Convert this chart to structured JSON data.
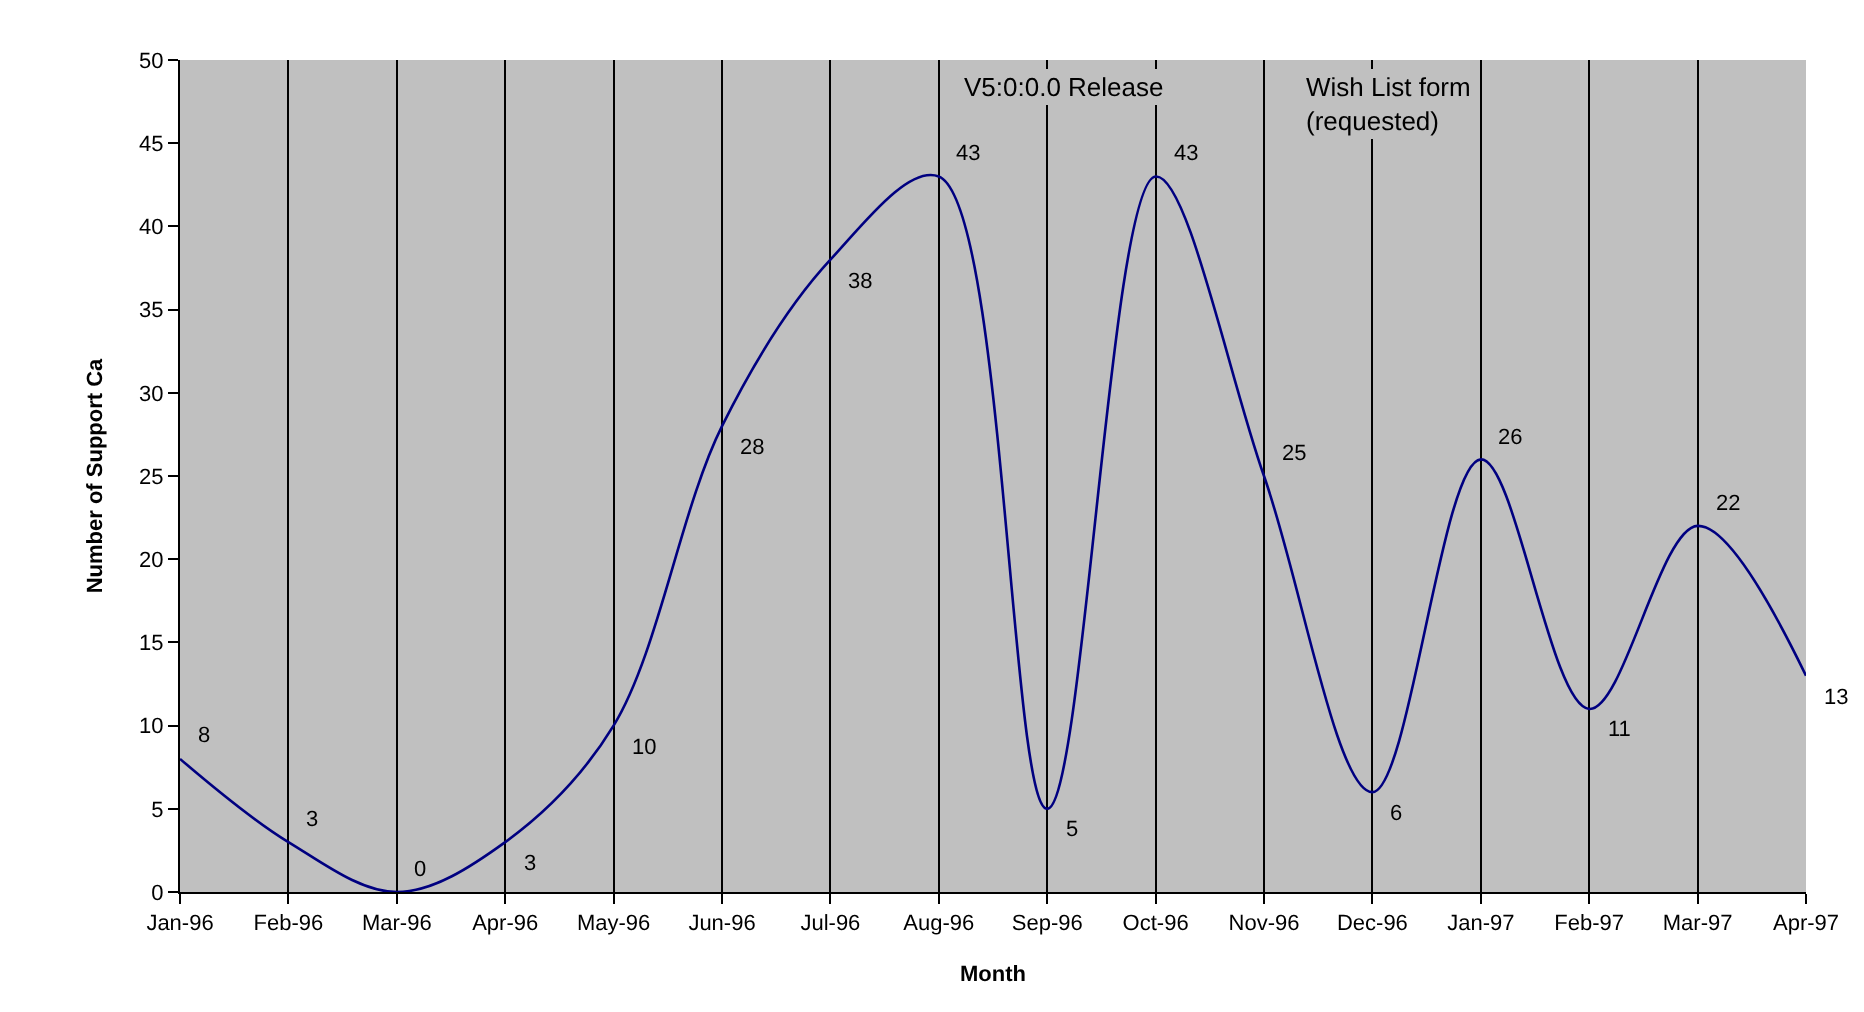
{
  "chart_data": {
    "type": "line",
    "xlabel": "Month",
    "ylabel": "Number of Support Ca",
    "categories": [
      "Jan-96",
      "Feb-96",
      "Mar-96",
      "Apr-96",
      "May-96",
      "Jun-96",
      "Jul-96",
      "Aug-96",
      "Sep-96",
      "Oct-96",
      "Nov-96",
      "Dec-96",
      "Jan-97",
      "Feb-97",
      "Mar-97",
      "Apr-97"
    ],
    "series": [
      {
        "color": "#000080",
        "values": [
          8,
          3,
          0,
          3,
          10,
          28,
          38,
          43,
          5,
          43,
          25,
          6,
          26,
          11,
          22,
          13
        ]
      }
    ],
    "ylim": [
      0,
      50
    ],
    "yticks": [
      0,
      5,
      10,
      15,
      20,
      25,
      30,
      35,
      40,
      45,
      50
    ],
    "grid": "x",
    "data_labels": true,
    "marker": "none",
    "line_style": "solid",
    "legend": false,
    "annotations": [
      "V5:0:0.0 Release",
      "Wish List form\n(requested)"
    ]
  }
}
